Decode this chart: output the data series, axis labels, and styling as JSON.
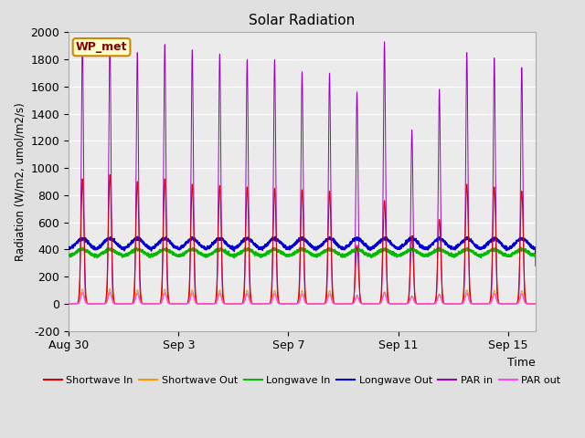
{
  "title": "Solar Radiation",
  "ylabel": "Radiation (W/m2, umol/m2/s)",
  "xlabel": "Time",
  "ylim": [
    -200,
    2000
  ],
  "yticks": [
    -200,
    0,
    200,
    400,
    600,
    800,
    1000,
    1200,
    1400,
    1600,
    1800,
    2000
  ],
  "xtick_labels": [
    "Aug 30",
    "Sep 3",
    "Sep 7",
    "Sep 11",
    "Sep 15"
  ],
  "xtick_positions": [
    0,
    4,
    8,
    12,
    16
  ],
  "xlim": [
    0,
    17
  ],
  "bg_color": "#e0e0e0",
  "plot_bg_color": "#ebebeb",
  "annotation_label": "WP_met",
  "annotation_bg": "#ffffcc",
  "annotation_border": "#cc8800",
  "annotation_text_color": "#880000",
  "legend_entries": [
    {
      "label": "Shortwave In",
      "color": "#dd0000"
    },
    {
      "label": "Shortwave Out",
      "color": "#ff9900"
    },
    {
      "label": "Longwave In",
      "color": "#00bb00"
    },
    {
      "label": "Longwave Out",
      "color": "#0000dd"
    },
    {
      "label": "PAR in",
      "color": "#9900bb"
    },
    {
      "label": "PAR out",
      "color": "#ff44ff"
    }
  ],
  "n_days": 17,
  "spd": 288,
  "sw_in_peaks": [
    920,
    950,
    900,
    920,
    880,
    870,
    860,
    850,
    840,
    830,
    430,
    760,
    500,
    620,
    880,
    860,
    830
  ],
  "par_in_peaks": [
    1940,
    1960,
    1850,
    1910,
    1870,
    1840,
    1800,
    1800,
    1710,
    1700,
    1560,
    1930,
    1280,
    1580,
    1850,
    1810,
    1740
  ],
  "lw_base_in": 350,
  "lw_base_out": 400,
  "lw_amp_in": 50,
  "lw_amp_out": 80
}
